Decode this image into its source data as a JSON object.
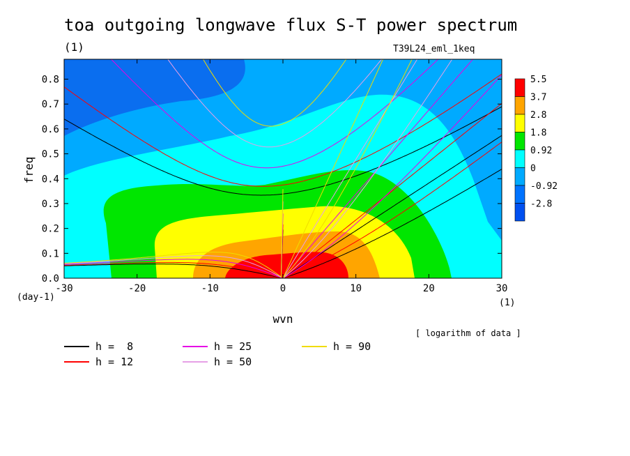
{
  "chart_data": {
    "type": "heatmap",
    "title": "toa outgoing longwave flux S-T power spectrum",
    "title_units": "(1)",
    "subtitle_right": "T39L24_eml_1keq",
    "xlabel": "wvn",
    "ylabel": "freq",
    "x_units": "(1)",
    "y_units": "(day-1)",
    "xlim": [
      -30,
      30
    ],
    "ylim": [
      0.0,
      0.88
    ],
    "xticks": [
      -30,
      -20,
      -10,
      0,
      10,
      20,
      30
    ],
    "xtick_labels": [
      "-30",
      "-20",
      "-10",
      "0",
      "10",
      "20",
      "30"
    ],
    "yticks": [
      0.0,
      0.1,
      0.2,
      0.3,
      0.4,
      0.5,
      0.6,
      0.7,
      0.8
    ],
    "ytick_labels": [
      "0.0",
      "0.1",
      "0.2",
      "0.3",
      "0.4",
      "0.5",
      "0.6",
      "0.7",
      "0.8"
    ],
    "note": "[ logarithm of data ]",
    "colorbar": {
      "labels": [
        "5.5",
        "3.7",
        "2.8",
        "1.8",
        "0.92",
        "0",
        "-0.92",
        "-2.8"
      ],
      "colors": [
        "#ff0000",
        "#ffa500",
        "#ffff00",
        "#00e600",
        "#00ffff",
        "#00aaff",
        "#0073ff",
        "#0050f0"
      ]
    },
    "contour_fill_colors": {
      "bg": "#00aaff",
      "dark": "#0a6eef",
      "cyan": "#00ffff",
      "green": "#00e600",
      "yellow": "#ffff00",
      "orange": "#ffa500",
      "red": "#ff0000"
    },
    "dispersion_curves": [
      {
        "label": "h =  8",
        "h": 8,
        "color": "#000000"
      },
      {
        "label": "h = 12",
        "h": 12,
        "color": "#ff0000"
      },
      {
        "label": "h = 25",
        "h": 25,
        "color": "#e600e6"
      },
      {
        "label": "h = 50",
        "h": 50,
        "color": "#e6a0e6"
      },
      {
        "label": "h = 90",
        "h": 90,
        "color": "#f0dc00"
      }
    ]
  }
}
